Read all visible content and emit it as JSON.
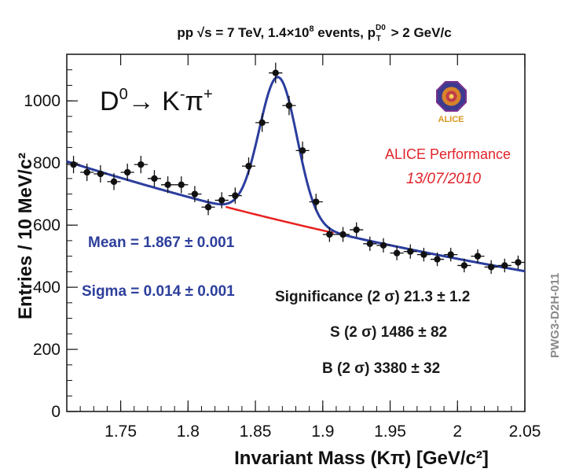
{
  "header": {
    "title_pre": "pp ",
    "title_sqrt": "√s",
    "title_mid": " = 7 TeV, 1.4×10",
    "title_exp": "8",
    "title_post1": " events, p",
    "title_sub": "T",
    "title_sup": "D0",
    "title_post2": " > 2 GeV/c"
  },
  "decay": {
    "parent": "D",
    "parent_sup": "0",
    "arrow": "→ K",
    "k_sup": "-",
    "pi": "π",
    "pi_sup": "+"
  },
  "fit": {
    "mean_label": "Mean = 1.867 ± 0.001",
    "sigma_label": "Sigma = 0.014 ± 0.001"
  },
  "stats": {
    "significance": "Significance (2 σ) 21.3 ± 1.2",
    "signal": "S (2 σ) 1486 ± 82",
    "background": "B (2 σ) 3380 ± 32"
  },
  "performance": {
    "label": "ALICE Performance",
    "date": "13/07/2010"
  },
  "logo": {
    "text": "ALICE"
  },
  "side_id": "PWG3-D2H-011",
  "colors": {
    "fit_line": "#2b3d9e",
    "background_line": "#e8211f",
    "points": "#111111",
    "label_blue": "#2d3f9c",
    "label_red": "#e0242a"
  },
  "chart_data": {
    "type": "scatter",
    "title": "pp √s = 7 TeV, 1.4×10^8 events, pT(D0) > 2 GeV/c",
    "xlabel": "Invariant Mass (Kπ) [GeV/c²]",
    "ylabel": "Entries / 10 MeV/c²",
    "xlim": [
      1.71,
      2.05
    ],
    "ylim": [
      0,
      1150
    ],
    "x_ticks": [
      1.75,
      1.8,
      1.85,
      1.9,
      1.95,
      2.0,
      2.05
    ],
    "x_tick_labels": [
      "1.75",
      "1.8",
      "1.85",
      "1.9",
      "1.95",
      "2",
      "2.05"
    ],
    "y_ticks": [
      0,
      200,
      400,
      600,
      800,
      1000
    ],
    "y_tick_labels": [
      "0",
      "200",
      "400",
      "600",
      "800",
      "1000"
    ],
    "points": [
      {
        "x": 1.715,
        "y": 795,
        "err": 28
      },
      {
        "x": 1.725,
        "y": 770,
        "err": 28
      },
      {
        "x": 1.735,
        "y": 765,
        "err": 28
      },
      {
        "x": 1.745,
        "y": 740,
        "err": 27
      },
      {
        "x": 1.755,
        "y": 770,
        "err": 28
      },
      {
        "x": 1.765,
        "y": 795,
        "err": 28
      },
      {
        "x": 1.775,
        "y": 750,
        "err": 27
      },
      {
        "x": 1.785,
        "y": 730,
        "err": 27
      },
      {
        "x": 1.795,
        "y": 730,
        "err": 27
      },
      {
        "x": 1.805,
        "y": 700,
        "err": 26
      },
      {
        "x": 1.815,
        "y": 658,
        "err": 26
      },
      {
        "x": 1.825,
        "y": 680,
        "err": 26
      },
      {
        "x": 1.835,
        "y": 695,
        "err": 26
      },
      {
        "x": 1.845,
        "y": 790,
        "err": 28
      },
      {
        "x": 1.855,
        "y": 930,
        "err": 30
      },
      {
        "x": 1.865,
        "y": 1090,
        "err": 33
      },
      {
        "x": 1.875,
        "y": 985,
        "err": 31
      },
      {
        "x": 1.885,
        "y": 840,
        "err": 29
      },
      {
        "x": 1.895,
        "y": 675,
        "err": 26
      },
      {
        "x": 1.905,
        "y": 570,
        "err": 24
      },
      {
        "x": 1.915,
        "y": 570,
        "err": 24
      },
      {
        "x": 1.925,
        "y": 585,
        "err": 24
      },
      {
        "x": 1.935,
        "y": 540,
        "err": 23
      },
      {
        "x": 1.945,
        "y": 535,
        "err": 23
      },
      {
        "x": 1.955,
        "y": 510,
        "err": 23
      },
      {
        "x": 1.965,
        "y": 515,
        "err": 23
      },
      {
        "x": 1.975,
        "y": 505,
        "err": 22
      },
      {
        "x": 1.985,
        "y": 490,
        "err": 22
      },
      {
        "x": 1.995,
        "y": 505,
        "err": 22
      },
      {
        "x": 2.005,
        "y": 470,
        "err": 22
      },
      {
        "x": 2.015,
        "y": 500,
        "err": 22
      },
      {
        "x": 2.025,
        "y": 465,
        "err": 22
      },
      {
        "x": 2.035,
        "y": 470,
        "err": 22
      },
      {
        "x": 2.045,
        "y": 480,
        "err": 22
      }
    ],
    "bin_half_width": 0.005,
    "fit": {
      "background": {
        "type": "exponential",
        "a": 805,
        "x0": 1.71,
        "slope": -1.7
      },
      "signal": {
        "type": "gaussian",
        "mean": 1.867,
        "sigma": 0.014,
        "amplitude": 460
      }
    },
    "background_segment": [
      1.828,
      1.908
    ]
  }
}
